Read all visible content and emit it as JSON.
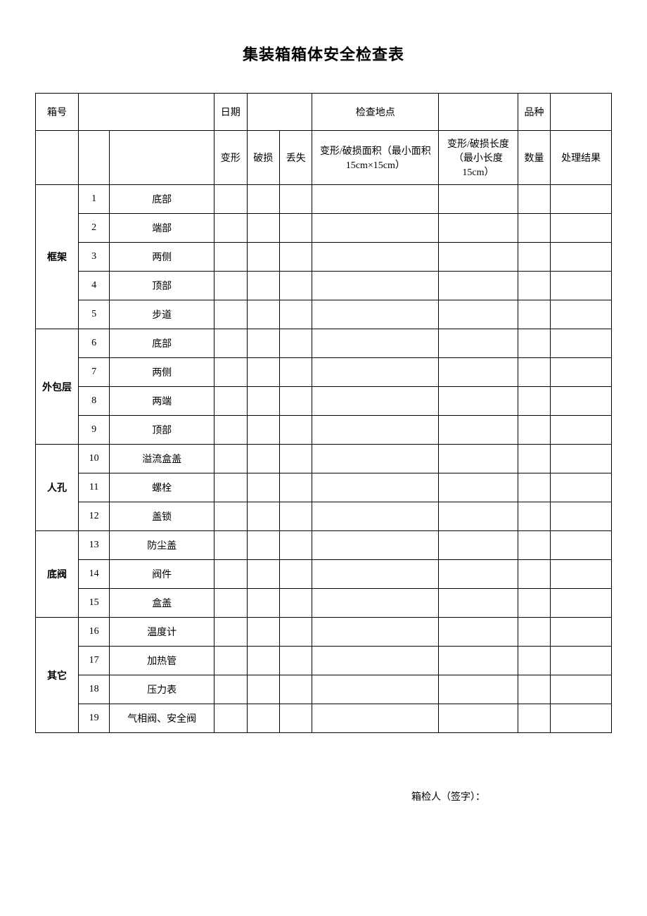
{
  "title": "集装箱箱体安全检查表",
  "header_row1": {
    "box_number_label": "箱号",
    "date_label": "日期",
    "location_label": "检查地点",
    "variety_label": "品种"
  },
  "header_row2": {
    "deform": "变形",
    "damage": "破损",
    "lost": "丢失",
    "area": "变形/破损面积（最小面积 15cm×15cm）",
    "length": "变形/破损长度（最小长度 15cm）",
    "qty": "数量",
    "result": "处理结果"
  },
  "groups": [
    {
      "category": "框架",
      "rows": [
        {
          "num": "1",
          "item": "底部"
        },
        {
          "num": "2",
          "item": "端部"
        },
        {
          "num": "3",
          "item": "两侧"
        },
        {
          "num": "4",
          "item": "顶部"
        },
        {
          "num": "5",
          "item": "步道"
        }
      ]
    },
    {
      "category": "外包层",
      "rows": [
        {
          "num": "6",
          "item": "底部"
        },
        {
          "num": "7",
          "item": "两侧"
        },
        {
          "num": "8",
          "item": "两端"
        },
        {
          "num": "9",
          "item": "顶部"
        }
      ]
    },
    {
      "category": "人孔",
      "rows": [
        {
          "num": "10",
          "item": "溢流盒盖"
        },
        {
          "num": "11",
          "item": "螺栓"
        },
        {
          "num": "12",
          "item": "盖锁"
        }
      ]
    },
    {
      "category": "底阀",
      "rows": [
        {
          "num": "13",
          "item": "防尘盖"
        },
        {
          "num": "14",
          "item": "阀件"
        },
        {
          "num": "15",
          "item": "盒盖"
        }
      ]
    },
    {
      "category": "其它",
      "rows": [
        {
          "num": "16",
          "item": "温度计"
        },
        {
          "num": "17",
          "item": "加热管"
        },
        {
          "num": "18",
          "item": "压力表"
        },
        {
          "num": "19",
          "item": "气相阀、安全阀"
        }
      ]
    }
  ],
  "footer": "箱检人（签字）：",
  "style": {
    "title_fontsize": 22,
    "body_fontsize": 14,
    "border_color": "#000000",
    "background_color": "#ffffff",
    "font_family": "SimSun"
  }
}
